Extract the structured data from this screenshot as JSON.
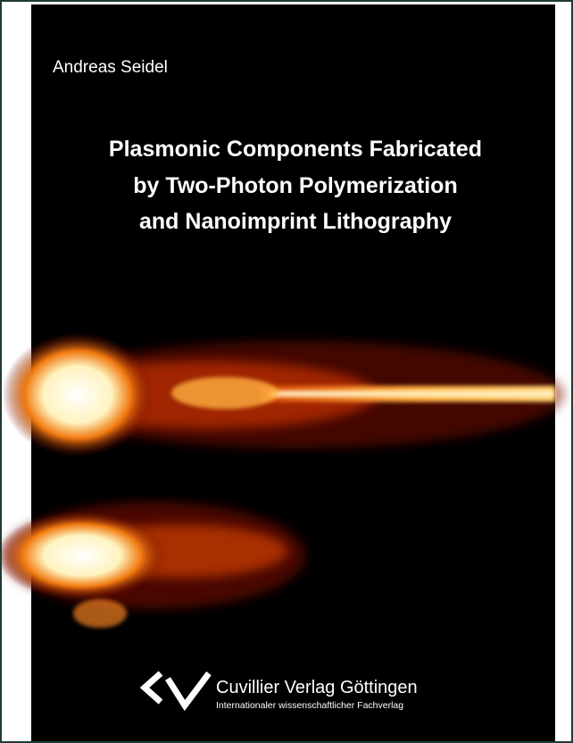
{
  "author": "Andreas Seidel",
  "title": [
    "Plasmonic Components Fabricated",
    "by Two-Photon Polymerization",
    "and Nanoimprint Lithography"
  ],
  "publisher": {
    "name": "Cuvillier Verlag Göttingen",
    "tagline": "Internationaler wissenschaftlicher Fachverlag"
  }
}
